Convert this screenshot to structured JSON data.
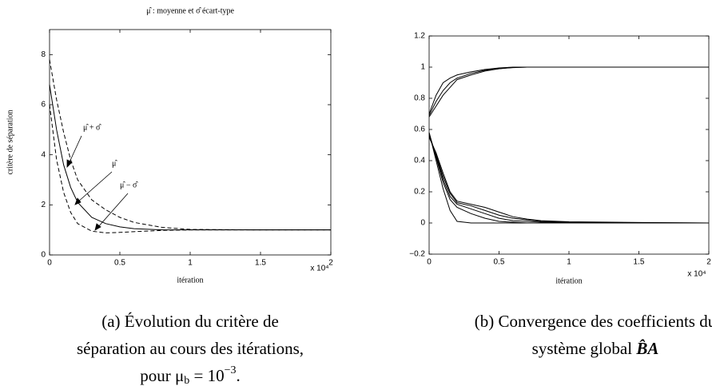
{
  "chart_data": [
    {
      "type": "line",
      "title": "μ̂ : moyenne et σ̂ écart-type",
      "x_label": "itération",
      "y_label": "critère de séparation",
      "x_multiplier": "x 10⁴",
      "x": [
        0,
        0.05,
        0.1,
        0.15,
        0.2,
        0.3,
        0.4,
        0.5,
        0.6,
        0.8,
        1,
        1.5,
        2
      ],
      "series": [
        {
          "name": "μ̂ + σ̂",
          "color": "#000000",
          "linestyle": "dashed",
          "values": [
            7.8,
            6.2,
            4.9,
            3.8,
            3.0,
            2.2,
            1.8,
            1.5,
            1.3,
            1.1,
            1.02,
            1,
            1
          ]
        },
        {
          "name": "μ̂",
          "color": "#000000",
          "linestyle": "solid",
          "values": [
            6.8,
            5.0,
            3.6,
            2.7,
            2.1,
            1.5,
            1.25,
            1.12,
            1.05,
            1.0,
            1,
            1,
            1
          ]
        },
        {
          "name": "μ̂ − σ̂",
          "color": "#000000",
          "linestyle": "dashed",
          "values": [
            6.0,
            3.8,
            2.5,
            1.7,
            1.25,
            0.95,
            0.88,
            0.9,
            0.93,
            0.98,
            1,
            1,
            1
          ]
        }
      ],
      "xlim": [
        0,
        2
      ],
      "xticks": [
        0,
        0.5,
        1,
        1.5,
        2
      ],
      "ylim": [
        0,
        9
      ],
      "yticks": [
        0,
        2,
        4,
        6,
        8
      ],
      "caption": {
        "line1": "(a) Évolution du critère de",
        "line2": "séparation au cours des itérations,",
        "pre": "pour μ",
        "sub": "b",
        "mid": " = 10",
        "sup": "−3",
        "end": "."
      }
    },
    {
      "type": "line",
      "x_label": "itération",
      "x_multiplier": "x 10⁴",
      "x": [
        0,
        0.05,
        0.1,
        0.15,
        0.2,
        0.3,
        0.4,
        0.5,
        0.6,
        0.7,
        0.8,
        1,
        1.5,
        2
      ],
      "series": [
        {
          "color": "#000000",
          "linestyle": "solid",
          "values": [
            0.7,
            0.82,
            0.9,
            0.93,
            0.95,
            0.97,
            0.985,
            0.995,
            1,
            1,
            1,
            1,
            1,
            1
          ]
        },
        {
          "color": "#000000",
          "linestyle": "solid",
          "values": [
            0.69,
            0.78,
            0.85,
            0.9,
            0.93,
            0.96,
            0.98,
            0.99,
            0.998,
            1,
            1,
            1,
            1,
            1
          ]
        },
        {
          "color": "#000000",
          "linestyle": "solid",
          "values": [
            0.68,
            0.75,
            0.82,
            0.87,
            0.92,
            0.95,
            0.975,
            0.99,
            0.997,
            1,
            1,
            1,
            1,
            1
          ]
        },
        {
          "color": "#000000",
          "linestyle": "solid",
          "values": [
            0.58,
            0.4,
            0.22,
            0.08,
            0.01,
            0,
            0,
            0,
            0,
            0,
            0,
            0,
            0,
            0
          ]
        },
        {
          "color": "#000000",
          "linestyle": "solid",
          "values": [
            0.58,
            0.42,
            0.26,
            0.15,
            0.1,
            0.06,
            0.03,
            0.01,
            0.005,
            0,
            0,
            0,
            0,
            0
          ]
        },
        {
          "color": "#000000",
          "linestyle": "solid",
          "values": [
            0.57,
            0.43,
            0.28,
            0.17,
            0.12,
            0.09,
            0.06,
            0.03,
            0.015,
            0.01,
            0.005,
            0.003,
            0,
            0
          ]
        },
        {
          "color": "#000000",
          "linestyle": "solid",
          "values": [
            0.56,
            0.44,
            0.3,
            0.19,
            0.13,
            0.11,
            0.08,
            0.05,
            0.03,
            0.02,
            0.01,
            0.005,
            0.002,
            0
          ]
        },
        {
          "color": "#000000",
          "linestyle": "solid",
          "values": [
            0.55,
            0.45,
            0.32,
            0.2,
            0.14,
            0.12,
            0.1,
            0.07,
            0.04,
            0.025,
            0.015,
            0.008,
            0.003,
            0
          ]
        }
      ],
      "xlim": [
        0,
        2
      ],
      "xticks": [
        0,
        0.5,
        1,
        1.5,
        2
      ],
      "ylim": [
        -0.2,
        1.2
      ],
      "yticks": [
        {
          "value": -0.2,
          "label": "−0.2"
        },
        0,
        0.2,
        0.4,
        0.6,
        0.8,
        1,
        1.2
      ],
      "caption": {
        "line1": "(b) Convergence des coefficients du",
        "pre": "système global ",
        "bold": "B̂A"
      }
    }
  ]
}
